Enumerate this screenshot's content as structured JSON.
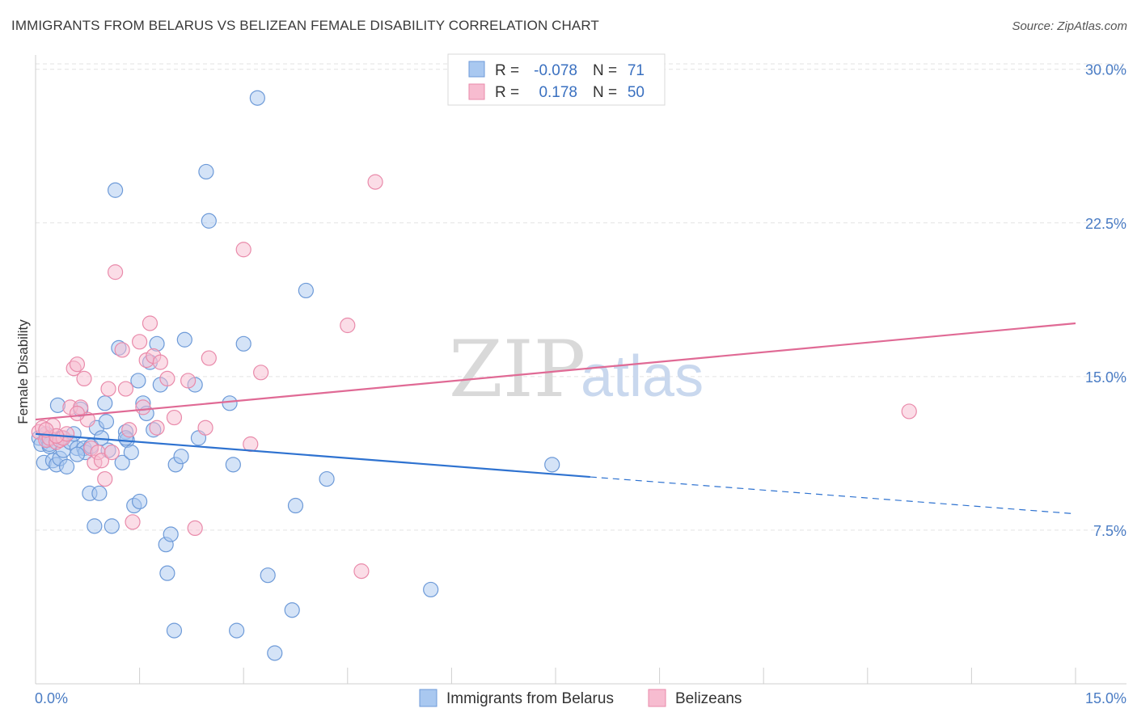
{
  "title": "IMMIGRANTS FROM BELARUS VS BELIZEAN FEMALE DISABILITY CORRELATION CHART",
  "source": "Source: ZipAtlas.com",
  "watermark": {
    "zip": "ZIP",
    "atlas": "atlas"
  },
  "legend_box": {
    "rows": [
      {
        "r_label": "R =",
        "r_value": "-0.078",
        "n_label": "N =",
        "n_value": "71"
      },
      {
        "r_label": "R =",
        "r_value": "0.178",
        "n_label": "N =",
        "n_value": "50"
      }
    ]
  },
  "colors": {
    "belarus_fill": "#a9c8f0",
    "belarus_stroke": "#6d9ad8",
    "belarus_line": "#2e72d0",
    "belizean_fill": "#f7bcd0",
    "belizean_stroke": "#e98aaa",
    "belizean_line": "#e06a95",
    "grid": "#e3e3e3",
    "axis_label": "#4a7cc4"
  },
  "chart_data": {
    "type": "scatter",
    "title": "IMMIGRANTS FROM BELARUS VS BELIZEAN FEMALE DISABILITY CORRELATION CHART",
    "xlabel": "",
    "ylabel": "Female Disability",
    "xlim": [
      0,
      15
    ],
    "ylim": [
      0,
      30.7
    ],
    "x_tick_labels": [
      "0.0%",
      "15.0%"
    ],
    "y_ticks": [
      7.5,
      15.0,
      22.5,
      30.0
    ],
    "y_tick_labels": [
      "7.5%",
      "15.0%",
      "22.5%",
      "30.0%"
    ],
    "grid": true,
    "legend_position": "bottom",
    "series": [
      {
        "name": "Immigrants from Belarus",
        "color": "#a9c8f0",
        "trend": {
          "x": [
            0,
            8.0
          ],
          "y": [
            12.2,
            10.1
          ],
          "dashed_extension": {
            "x": [
              8.0,
              15.0
            ],
            "y": [
              10.1,
              8.3
            ]
          }
        },
        "points": [
          [
            0.05,
            12.0
          ],
          [
            0.08,
            11.7
          ],
          [
            0.12,
            10.8
          ],
          [
            0.15,
            12.2
          ],
          [
            0.18,
            11.9
          ],
          [
            0.2,
            11.6
          ],
          [
            0.25,
            10.9
          ],
          [
            0.3,
            10.7
          ],
          [
            0.32,
            13.6
          ],
          [
            0.35,
            11.0
          ],
          [
            0.38,
            12.0
          ],
          [
            0.4,
            11.4
          ],
          [
            0.45,
            10.6
          ],
          [
            0.5,
            11.8
          ],
          [
            0.55,
            12.2
          ],
          [
            0.6,
            11.5
          ],
          [
            0.65,
            13.4
          ],
          [
            0.7,
            11.5
          ],
          [
            0.72,
            11.3
          ],
          [
            0.78,
            9.3
          ],
          [
            0.8,
            11.6
          ],
          [
            0.85,
            7.7
          ],
          [
            0.88,
            12.5
          ],
          [
            0.92,
            9.3
          ],
          [
            0.95,
            12.0
          ],
          [
            1.0,
            13.7
          ],
          [
            1.02,
            12.8
          ],
          [
            1.05,
            11.4
          ],
          [
            1.1,
            7.7
          ],
          [
            1.15,
            24.1
          ],
          [
            1.2,
            16.4
          ],
          [
            1.25,
            10.8
          ],
          [
            1.3,
            12.3
          ],
          [
            1.32,
            11.9
          ],
          [
            1.38,
            11.3
          ],
          [
            1.42,
            8.7
          ],
          [
            1.48,
            14.8
          ],
          [
            1.5,
            8.9
          ],
          [
            1.55,
            13.7
          ],
          [
            1.6,
            13.2
          ],
          [
            1.65,
            15.7
          ],
          [
            1.7,
            12.4
          ],
          [
            1.75,
            16.6
          ],
          [
            1.8,
            14.6
          ],
          [
            1.88,
            6.8
          ],
          [
            1.9,
            5.4
          ],
          [
            1.95,
            7.3
          ],
          [
            2.0,
            2.6
          ],
          [
            2.02,
            10.7
          ],
          [
            2.1,
            11.1
          ],
          [
            2.15,
            16.8
          ],
          [
            2.3,
            14.6
          ],
          [
            2.35,
            12.0
          ],
          [
            2.46,
            25.0
          ],
          [
            2.5,
            22.6
          ],
          [
            2.8,
            13.7
          ],
          [
            2.85,
            10.7
          ],
          [
            2.9,
            2.6
          ],
          [
            3.0,
            16.6
          ],
          [
            3.2,
            28.6
          ],
          [
            3.35,
            5.3
          ],
          [
            3.45,
            1.5
          ],
          [
            3.7,
            3.6
          ],
          [
            3.75,
            8.7
          ],
          [
            3.9,
            19.2
          ],
          [
            4.2,
            10.0
          ],
          [
            5.7,
            4.6
          ],
          [
            7.45,
            10.7
          ],
          [
            0.6,
            11.2
          ],
          [
            1.3,
            12.0
          ],
          [
            0.2,
            11.7
          ]
        ]
      },
      {
        "name": "Belizeans",
        "color": "#f7bcd0",
        "trend": {
          "x": [
            0,
            15.0
          ],
          "y": [
            12.9,
            17.6
          ]
        },
        "points": [
          [
            0.05,
            12.3
          ],
          [
            0.1,
            12.5
          ],
          [
            0.15,
            11.9
          ],
          [
            0.2,
            12.0
          ],
          [
            0.25,
            12.6
          ],
          [
            0.3,
            11.8
          ],
          [
            0.35,
            11.9
          ],
          [
            0.4,
            12.0
          ],
          [
            0.45,
            12.2
          ],
          [
            0.5,
            13.5
          ],
          [
            0.55,
            15.4
          ],
          [
            0.6,
            15.6
          ],
          [
            0.65,
            13.5
          ],
          [
            0.7,
            14.9
          ],
          [
            0.75,
            12.9
          ],
          [
            0.8,
            11.5
          ],
          [
            0.85,
            10.8
          ],
          [
            0.9,
            11.3
          ],
          [
            0.95,
            10.9
          ],
          [
            1.0,
            10.0
          ],
          [
            1.05,
            14.4
          ],
          [
            1.15,
            20.1
          ],
          [
            1.25,
            16.3
          ],
          [
            1.3,
            14.4
          ],
          [
            1.35,
            12.4
          ],
          [
            1.4,
            7.9
          ],
          [
            1.5,
            16.7
          ],
          [
            1.55,
            13.5
          ],
          [
            1.6,
            15.8
          ],
          [
            1.65,
            17.6
          ],
          [
            1.7,
            16.0
          ],
          [
            1.75,
            12.5
          ],
          [
            1.8,
            15.7
          ],
          [
            1.9,
            14.9
          ],
          [
            2.0,
            13.0
          ],
          [
            2.2,
            14.8
          ],
          [
            2.3,
            7.6
          ],
          [
            2.45,
            12.5
          ],
          [
            2.5,
            15.9
          ],
          [
            3.0,
            21.2
          ],
          [
            3.1,
            11.7
          ],
          [
            3.25,
            15.2
          ],
          [
            4.5,
            17.5
          ],
          [
            4.7,
            5.5
          ],
          [
            4.9,
            24.5
          ],
          [
            12.6,
            13.3
          ],
          [
            0.6,
            13.2
          ],
          [
            0.3,
            12.1
          ],
          [
            1.1,
            11.3
          ],
          [
            0.15,
            12.4
          ]
        ]
      }
    ]
  },
  "bottom_legend": {
    "items": [
      {
        "label": "Immigrants from Belarus"
      },
      {
        "label": "Belizeans"
      }
    ]
  }
}
